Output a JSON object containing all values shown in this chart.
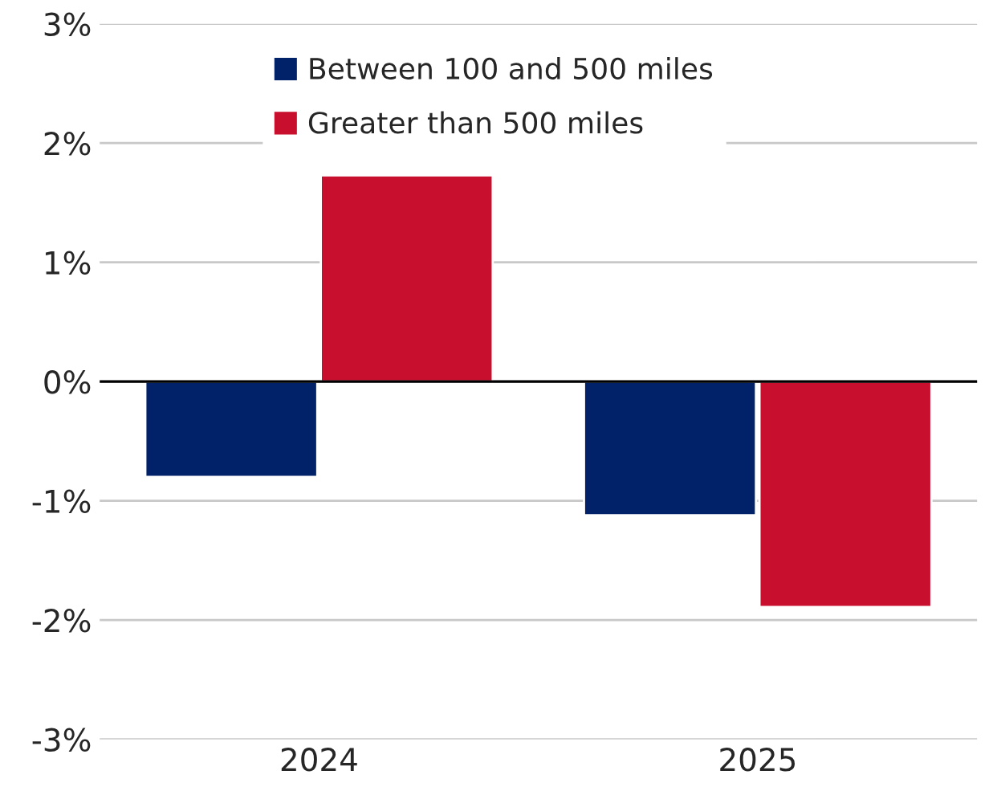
{
  "chart_data": {
    "type": "bar",
    "categories": [
      "2024",
      "2025"
    ],
    "series": [
      {
        "name": "Between 100 and 500 miles",
        "color": "#012169",
        "values": [
          -0.8,
          -1.12
        ]
      },
      {
        "name": "Greater than 500 miles",
        "color": "#c8102e",
        "values": [
          1.73,
          -1.89
        ]
      }
    ],
    "ylim": [
      -3,
      3
    ],
    "yticks": [
      {
        "value": -3,
        "label": "-3%"
      },
      {
        "value": -2,
        "label": "-2%"
      },
      {
        "value": -1,
        "label": "-1%"
      },
      {
        "value": 0,
        "label": "0%"
      },
      {
        "value": 1,
        "label": "1%"
      },
      {
        "value": 2,
        "label": "2%"
      },
      {
        "value": 3,
        "label": "3%"
      }
    ],
    "grid": "y",
    "legend": "top",
    "ref_lines": [
      {
        "axis": "y",
        "value": 0,
        "color": "#000000"
      }
    ]
  }
}
